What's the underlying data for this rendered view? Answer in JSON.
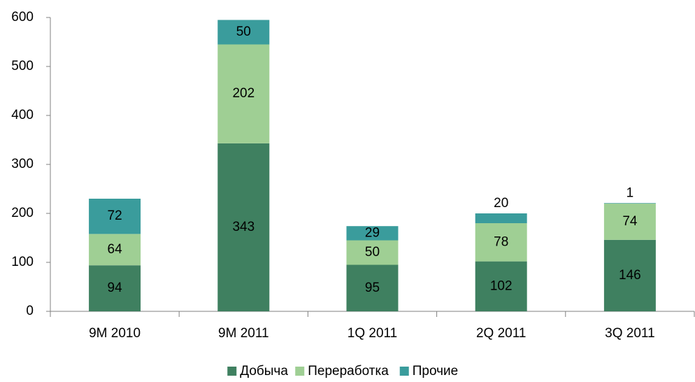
{
  "chart_data": {
    "type": "bar",
    "stacked": true,
    "categories": [
      "9M 2010",
      "9M 2011",
      "1Q 2011",
      "2Q 2011",
      "3Q 2011"
    ],
    "series": [
      {
        "name": "Добыча",
        "color": "#3f8060",
        "values": [
          94,
          343,
          95,
          102,
          146
        ]
      },
      {
        "name": "Переработка",
        "color": "#9fcf94",
        "values": [
          64,
          202,
          50,
          78,
          74
        ]
      },
      {
        "name": "Прочие",
        "color": "#3a9c9c",
        "values": [
          72,
          50,
          29,
          20,
          1
        ]
      }
    ],
    "ylim": [
      0,
      600
    ],
    "yticks": [
      0,
      100,
      200,
      300,
      400,
      500,
      600
    ],
    "grid": false,
    "legend": "bottom"
  }
}
